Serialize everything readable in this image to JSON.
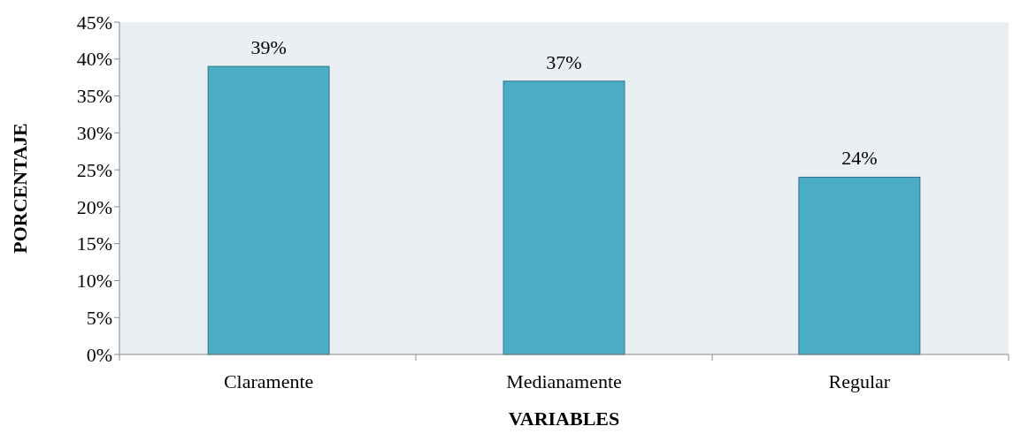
{
  "chart_data": {
    "type": "bar",
    "xlabel": "VARIABLES",
    "ylabel": "PORCENTAJE",
    "categories": [
      "Claramente",
      "Medianamente",
      "Regular"
    ],
    "values": [
      39,
      37,
      24
    ],
    "value_labels": [
      "39%",
      "37%",
      "24%"
    ],
    "color": "#4bacc6",
    "ylim": [
      0,
      45
    ],
    "yticks": [
      {
        "value": 0,
        "label": "0%"
      },
      {
        "value": 5,
        "label": "5%"
      },
      {
        "value": 10,
        "label": "10%"
      },
      {
        "value": 15,
        "label": "15%"
      },
      {
        "value": 20,
        "label": "20%"
      },
      {
        "value": 25,
        "label": "25%"
      },
      {
        "value": 30,
        "label": "30%"
      },
      {
        "value": 35,
        "label": "35%"
      },
      {
        "value": 40,
        "label": "40%"
      },
      {
        "value": 45,
        "label": "45%"
      }
    ],
    "grid": false
  }
}
